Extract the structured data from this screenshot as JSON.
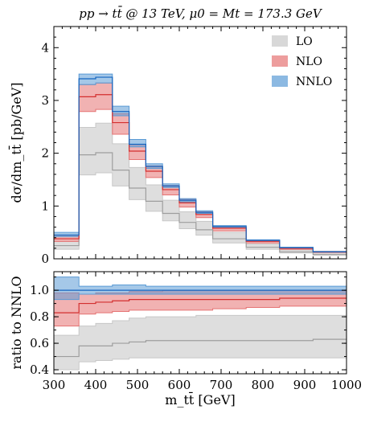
{
  "chart_data": {
    "type": "step-band",
    "title": "pp → tt̄ @ 13 TeV, μ0 = Mt = 173.3 GeV",
    "xlabel": "m_tt̄ [GeV]",
    "xlim": [
      300,
      1000
    ],
    "x_ticks": [
      "300",
      "400",
      "500",
      "600",
      "700",
      "800",
      "900",
      "1000"
    ],
    "top": {
      "ylabel": "dσ/dm_tt̄ [pb/GeV]",
      "ylim": [
        0,
        4.4
      ],
      "y_ticks": [
        "0",
        "1",
        "2",
        "3",
        "4"
      ]
    },
    "bottom": {
      "ylabel": "ratio to NNLO",
      "ylim": [
        0.37,
        1.14
      ],
      "y_ticks": [
        "0.4",
        "0.6",
        "0.8",
        "1.0"
      ]
    },
    "legend_position": "top-right",
    "bin_edges": [
      300,
      360,
      400,
      440,
      480,
      520,
      560,
      600,
      640,
      680,
      760,
      840,
      920,
      1000
    ],
    "series": [
      {
        "name": "LO",
        "color": "#c8c8c8",
        "central": [
          0.25,
          1.97,
          2.01,
          1.68,
          1.34,
          1.09,
          0.86,
          0.69,
          0.55,
          0.38,
          0.22,
          0.13,
          0.08
        ],
        "lower": [
          0.18,
          1.59,
          1.63,
          1.38,
          1.12,
          0.9,
          0.72,
          0.57,
          0.45,
          0.3,
          0.18,
          0.11,
          0.07
        ],
        "upper": [
          0.33,
          2.49,
          2.57,
          2.18,
          1.73,
          1.4,
          1.11,
          0.89,
          0.71,
          0.5,
          0.28,
          0.17,
          0.11
        ]
      },
      {
        "name": "NLO",
        "color": "#e57373",
        "central": [
          0.38,
          3.07,
          3.11,
          2.58,
          2.04,
          1.66,
          1.31,
          1.06,
          0.84,
          0.58,
          0.33,
          0.2,
          0.13
        ],
        "lower": [
          0.33,
          2.79,
          2.83,
          2.36,
          1.88,
          1.54,
          1.21,
          0.98,
          0.78,
          0.53,
          0.3,
          0.18,
          0.12
        ],
        "upper": [
          0.45,
          3.3,
          3.33,
          2.75,
          2.17,
          1.76,
          1.39,
          1.13,
          0.89,
          0.62,
          0.35,
          0.21,
          0.14
        ]
      },
      {
        "name": "NNLO",
        "color": "#5b9bd5",
        "central": [
          0.45,
          3.41,
          3.44,
          2.79,
          2.17,
          1.75,
          1.38,
          1.11,
          0.88,
          0.61,
          0.35,
          0.21,
          0.13
        ],
        "lower": [
          0.42,
          3.3,
          3.33,
          2.71,
          2.12,
          1.71,
          1.35,
          1.08,
          0.86,
          0.6,
          0.34,
          0.2,
          0.13
        ],
        "upper": [
          0.5,
          3.5,
          3.5,
          2.89,
          2.26,
          1.8,
          1.42,
          1.14,
          0.91,
          0.63,
          0.36,
          0.22,
          0.14
        ]
      }
    ],
    "ratio_series": [
      {
        "name": "LO",
        "central": [
          0.5,
          0.58,
          0.58,
          0.6,
          0.61,
          0.62,
          0.62,
          0.62,
          0.62,
          0.62,
          0.62,
          0.62,
          0.63
        ],
        "lower": [
          0.4,
          0.46,
          0.47,
          0.48,
          0.49,
          0.49,
          0.49,
          0.49,
          0.49,
          0.49,
          0.49,
          0.49,
          0.49
        ],
        "upper": [
          0.66,
          0.73,
          0.75,
          0.77,
          0.79,
          0.8,
          0.8,
          0.8,
          0.81,
          0.81,
          0.81,
          0.81,
          0.81
        ]
      },
      {
        "name": "NLO",
        "central": [
          0.83,
          0.9,
          0.91,
          0.92,
          0.93,
          0.93,
          0.93,
          0.93,
          0.93,
          0.93,
          0.93,
          0.94,
          0.94
        ],
        "lower": [
          0.73,
          0.82,
          0.83,
          0.84,
          0.85,
          0.85,
          0.85,
          0.85,
          0.85,
          0.86,
          0.87,
          0.88,
          0.88
        ],
        "upper": [
          0.98,
          0.97,
          0.98,
          0.98,
          0.99,
          0.99,
          1.0,
          1.0,
          1.0,
          1.0,
          1.0,
          1.0,
          1.0
        ]
      },
      {
        "name": "NNLO",
        "central": [
          1.0,
          1.0,
          1.0,
          1.0,
          1.0,
          1.0,
          1.0,
          1.0,
          1.0,
          1.0,
          1.0,
          1.0,
          1.0
        ],
        "lower": [
          0.93,
          0.97,
          0.97,
          0.97,
          0.97,
          0.97,
          0.97,
          0.97,
          0.97,
          0.97,
          0.97,
          0.97,
          0.97
        ],
        "upper": [
          1.1,
          1.03,
          1.03,
          1.04,
          1.04,
          1.03,
          1.03,
          1.03,
          1.03,
          1.03,
          1.03,
          1.03,
          1.03
        ]
      }
    ]
  }
}
